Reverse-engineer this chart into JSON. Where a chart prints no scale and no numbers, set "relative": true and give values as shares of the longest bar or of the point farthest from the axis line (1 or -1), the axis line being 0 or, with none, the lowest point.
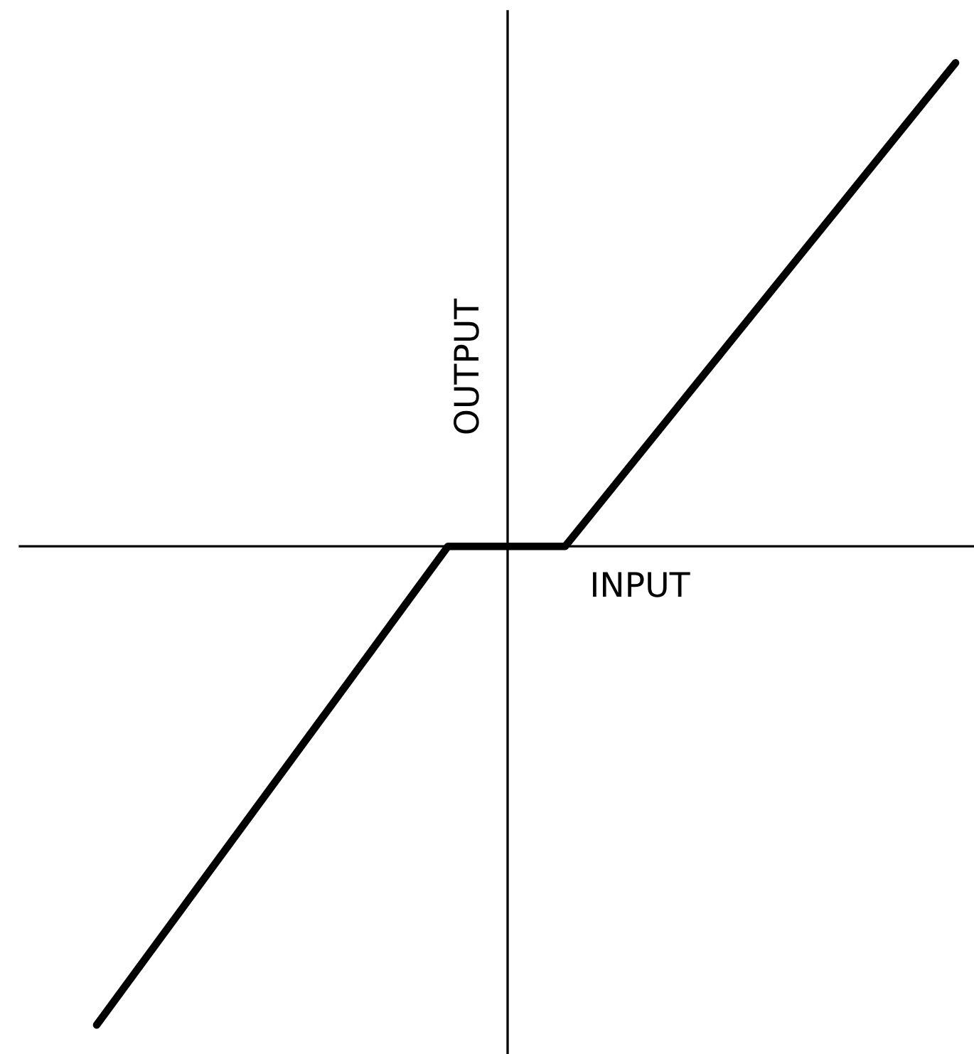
{
  "chart_data": {
    "type": "line",
    "relative": true,
    "xlabel": "INPUT",
    "ylabel": "OUTPUT",
    "categories": [
      null,
      null,
      null,
      null,
      null,
      null,
      null,
      null,
      null,
      null,
      null,
      null,
      null,
      null,
      null,
      null,
      null,
      null,
      null,
      null,
      null,
      null,
      null
    ],
    "series": [
      {
        "color": "#000000",
        "values": [
          -0.99,
          -0.88,
          -0.77,
          -0.66,
          -0.55,
          -0.44,
          -0.33,
          -0.22,
          -0.11,
          0,
          0,
          0,
          0,
          0.1,
          0.2,
          0.3,
          0.4,
          0.5,
          0.6,
          0.7,
          0.8,
          0.9,
          1
        ]
      }
    ]
  }
}
